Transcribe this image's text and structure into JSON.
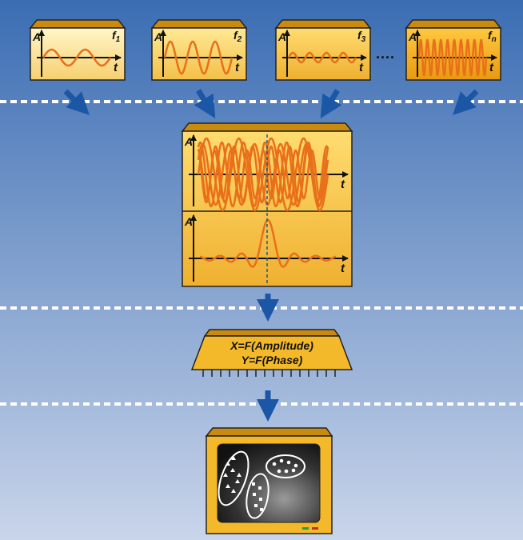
{
  "panels": [
    {
      "y_label": "A",
      "x_label": "t",
      "freq_label": "f",
      "freq_sub": "1"
    },
    {
      "y_label": "A",
      "x_label": "t",
      "freq_label": "f",
      "freq_sub": "2"
    },
    {
      "y_label": "A",
      "x_label": "t",
      "freq_label": "f",
      "freq_sub": "3"
    },
    {
      "y_label": "A",
      "x_label": "t",
      "freq_label": "f",
      "freq_sub": "n"
    }
  ],
  "ellipsis": "....",
  "combined": {
    "upper": {
      "y_label": "A",
      "x_label": "t"
    },
    "lower": {
      "y_label": "A",
      "x_label": "t"
    }
  },
  "chip": {
    "line1": "X=F(Amplitude)",
    "line2": "Y=F(Phase)"
  }
}
